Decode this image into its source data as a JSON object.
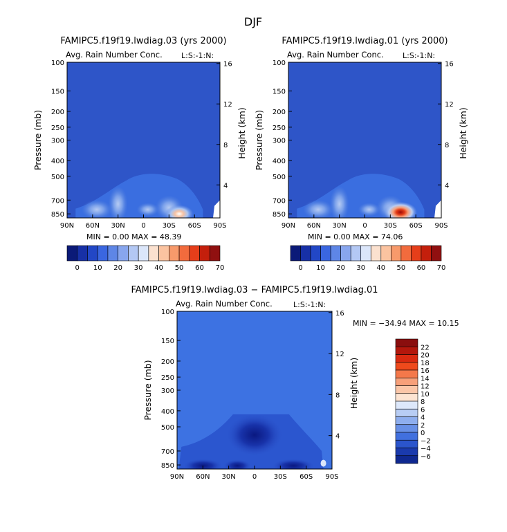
{
  "figure": {
    "title": "DJF"
  },
  "colors": {
    "background": "#2e55c8",
    "background_light": "#3a6ee0",
    "diff_background": "#3d72e2"
  },
  "chart_data": [
    {
      "type": "heatmap",
      "title": "FAMIPC5.f19f19.lwdiag.03 (yrs 2000)",
      "subtitle": "Avg. Rain Number Conc.",
      "units_tag": "L:S:-1:N:",
      "ylabel": "Pressure (mb)",
      "y2label": "Height (km)",
      "x_ticks": [
        "90N",
        "60N",
        "30N",
        "0",
        "30S",
        "60S",
        "90S"
      ],
      "y_ticks": [
        "100",
        "150",
        "200",
        "250",
        "300",
        "400",
        "500",
        "700",
        "850"
      ],
      "y2_ticks": [
        "16",
        "12",
        "8",
        "4"
      ],
      "x_range": [
        90,
        -90
      ],
      "y_range": [
        100,
        900
      ],
      "stats": "MIN =   0.00   MAX =  48.39",
      "min": 0.0,
      "max": 48.39,
      "colorbar_labels": [
        "0",
        "10",
        "20",
        "30",
        "40",
        "50",
        "60",
        "70"
      ],
      "features": [
        {
          "label": "peak",
          "lat": -42,
          "p": 850,
          "value": 48.39
        }
      ]
    },
    {
      "type": "heatmap",
      "title": "FAMIPC5.f19f19.lwdiag.01 (yrs 2000)",
      "subtitle": "Avg. Rain Number Conc.",
      "units_tag": "L:S:-1:N:",
      "ylabel": "Pressure (mb)",
      "y2label": "Height (km)",
      "x_ticks": [
        "90N",
        "60N",
        "30N",
        "0",
        "30S",
        "60S",
        "90S"
      ],
      "y_ticks": [
        "100",
        "150",
        "200",
        "250",
        "300",
        "400",
        "500",
        "700",
        "850"
      ],
      "y2_ticks": [
        "16",
        "12",
        "8",
        "4"
      ],
      "x_range": [
        90,
        -90
      ],
      "y_range": [
        100,
        900
      ],
      "stats": "MIN =   0.00   MAX =  74.06",
      "min": 0.0,
      "max": 74.06,
      "colorbar_labels": [
        "0",
        "10",
        "20",
        "30",
        "40",
        "50",
        "60",
        "70"
      ],
      "features": [
        {
          "label": "peak",
          "lat": -42,
          "p": 830,
          "value": 74.06
        }
      ]
    },
    {
      "type": "heatmap",
      "title": "FAMIPC5.f19f19.lwdiag.03 − FAMIPC5.f19f19.lwdiag.01",
      "subtitle": "Avg. Rain Number Conc.",
      "units_tag": "L:S:-1:N:",
      "ylabel": "Pressure (mb)",
      "y2label": "Height (km)",
      "x_ticks": [
        "90N",
        "60N",
        "30N",
        "0",
        "30S",
        "60S",
        "90S"
      ],
      "y_ticks": [
        "100",
        "150",
        "200",
        "250",
        "300",
        "400",
        "500",
        "700",
        "850"
      ],
      "y2_ticks": [
        "16",
        "12",
        "8",
        "4"
      ],
      "x_range": [
        90,
        -90
      ],
      "y_range": [
        100,
        900
      ],
      "stats": "MIN = −34.94   MAX =   10.15",
      "min": -34.94,
      "max": 10.15,
      "colorbar_labels": [
        "22",
        "20",
        "18",
        "16",
        "14",
        "12",
        "10",
        "8",
        "6",
        "4",
        "2",
        "0",
        "−2",
        "−4",
        "−6"
      ]
    }
  ]
}
